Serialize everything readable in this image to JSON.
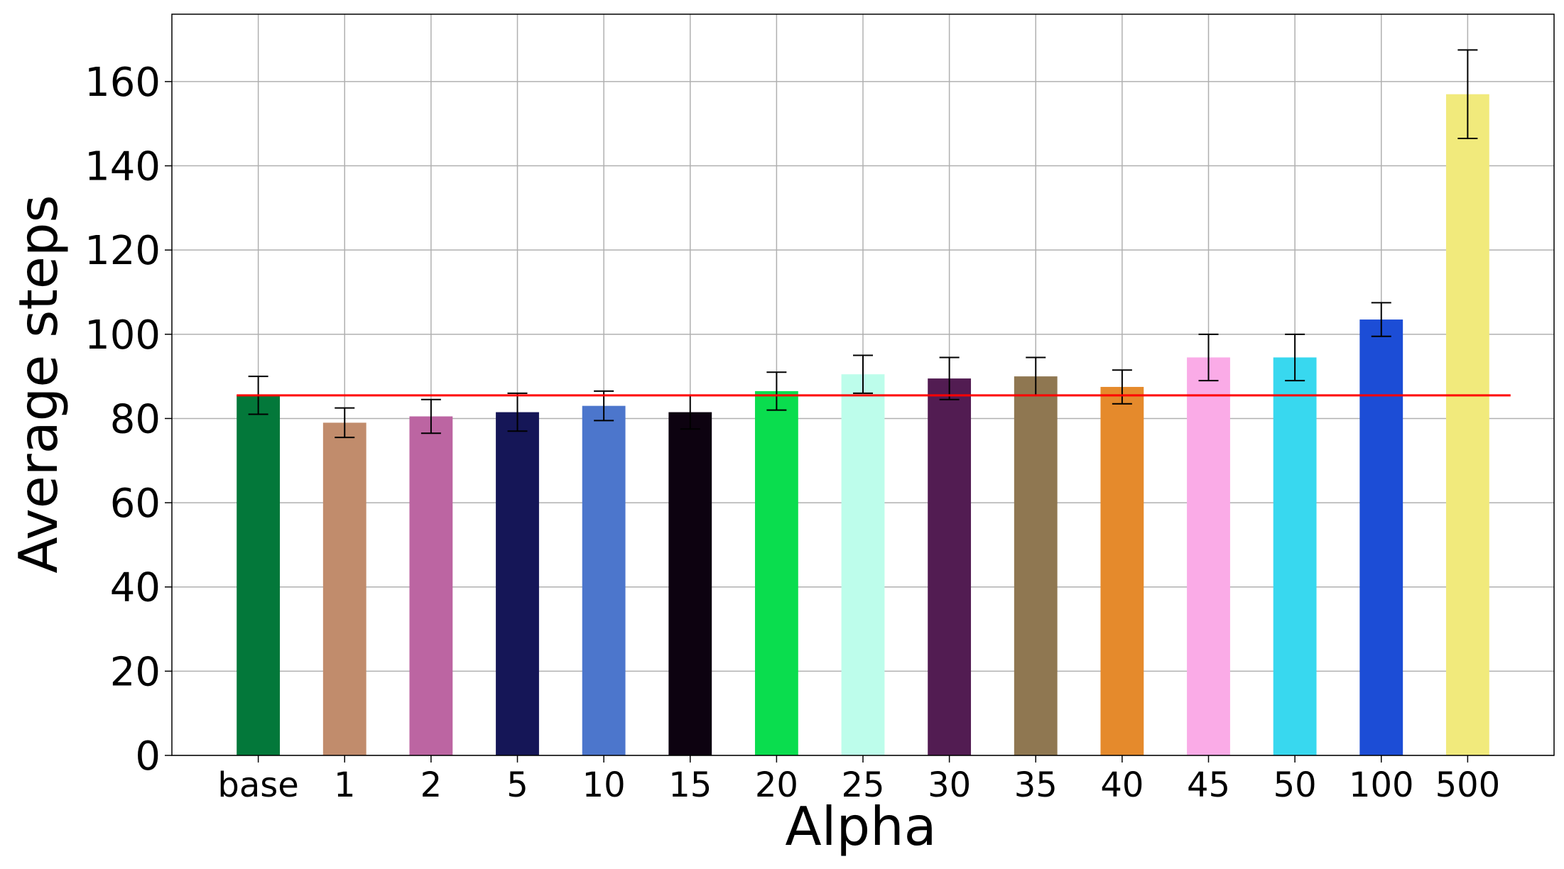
{
  "chart_data": {
    "type": "bar",
    "title": "",
    "xlabel": "Alpha",
    "ylabel": "Average steps",
    "ylim": [
      0,
      176
    ],
    "yticks": [
      0,
      20,
      40,
      60,
      80,
      100,
      120,
      140,
      160
    ],
    "grid": true,
    "categories": [
      "base",
      "1",
      "2",
      "5",
      "10",
      "15",
      "20",
      "25",
      "30",
      "35",
      "40",
      "45",
      "50",
      "100",
      "500"
    ],
    "values": [
      85.5,
      79,
      80.5,
      81.5,
      83,
      81.5,
      86.5,
      90.5,
      89.5,
      90,
      87.5,
      94.5,
      94.5,
      103.5,
      157
    ],
    "errors": [
      4.5,
      3.5,
      4,
      4.5,
      3.5,
      4,
      4.5,
      4.5,
      5,
      4.5,
      4,
      5.5,
      5.5,
      4,
      10.5
    ],
    "colors": [
      "#03783a",
      "#c18c6c",
      "#bc65a2",
      "#151657",
      "#4c76cc",
      "#0d0210",
      "#0add4e",
      "#bdfdeb",
      "#521c52",
      "#8f7751",
      "#e58a2c",
      "#faabe7",
      "#38d8ef",
      "#1c4dd6",
      "#f1ea7c"
    ],
    "reference_line": {
      "value": 85.5,
      "color": "#ff0000"
    }
  }
}
